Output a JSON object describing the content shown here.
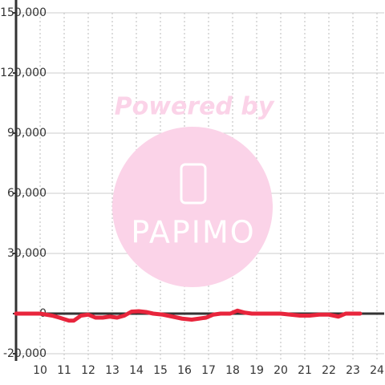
{
  "chart_data": {
    "type": "line",
    "watermark": [
      "Powered by",
      "PAPIMO"
    ],
    "xlim": [
      9,
      24.3
    ],
    "xticks": [
      10,
      11,
      12,
      13,
      14,
      15,
      16,
      17,
      18,
      19,
      20,
      21,
      22,
      23,
      24
    ],
    "ylim": [
      -20000,
      150000
    ],
    "yticks": [
      {
        "value": -20000,
        "label": "-20,000"
      },
      0,
      {
        "value": 30000,
        "label": "30,000"
      },
      {
        "value": 60000,
        "label": "60,000"
      },
      {
        "value": 90000,
        "label": "90,000"
      },
      {
        "value": 120000,
        "label": "120,000"
      },
      {
        "value": 150000,
        "label": "150,000"
      }
    ],
    "grid": true,
    "x": [
      9,
      10,
      10.5,
      10.8,
      11.2,
      11.4,
      11.7,
      12,
      12.3,
      12.6,
      12.9,
      13.2,
      13.5,
      13.8,
      14.1,
      14.4,
      14.7,
      15.1,
      15.5,
      15.9,
      16.3,
      16.6,
      16.9,
      17.2,
      17.5,
      17.9,
      18.2,
      18.5,
      18.8,
      19.2,
      19.6,
      20,
      20.4,
      20.8,
      21.2,
      21.6,
      22,
      22.4,
      22.7,
      23.3
    ],
    "series": [
      {
        "color": "#e8253c",
        "values": [
          0,
          0,
          -1000,
          -2000,
          -3500,
          -3500,
          -1000,
          -500,
          -2000,
          -2000,
          -1500,
          -2000,
          -1000,
          1000,
          1200,
          800,
          0,
          -500,
          -1500,
          -2500,
          -3000,
          -2500,
          -2000,
          -500,
          0,
          0,
          1500,
          500,
          0,
          0,
          0,
          0,
          -500,
          -1000,
          -1000,
          -500,
          -500,
          -1500,
          0,
          0
        ]
      }
    ]
  }
}
